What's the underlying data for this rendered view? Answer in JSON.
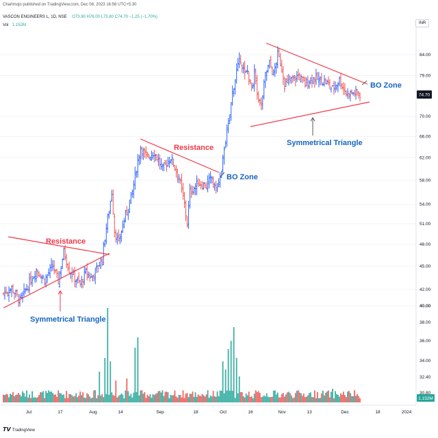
{
  "header": {
    "published": "Chartmojo published on TradingView.com, Dec 08, 2023 16:56 UTC+5:30",
    "symbol": "VASCON ENGINEERS L, 1D, NSE",
    "ohlc": "O73.90  H76.00  L73.80  C74.70  −1.25 (−1.70%)",
    "vol_label": "Vol",
    "vol_value": "1.152M",
    "currency": "INR",
    "last_price": "74.70",
    "vol_tag": "1.152M",
    "logo_text": "TradingView"
  },
  "colors": {
    "up": "#2962ff",
    "down": "#ef5350",
    "vol_up": "#26a69a",
    "vol_down": "#ef5350",
    "line": "#f23645",
    "annotation_red": "#f23645",
    "annotation_blue": "#1565c0",
    "price_tag_bg": "#131722",
    "vol_tag_bg": "#26a69a"
  },
  "chart_data": {
    "type": "ohlc",
    "price_axis": {
      "scale": "log",
      "ticks": [
        84.0,
        79.0,
        74.7,
        70.0,
        66.0,
        62.0,
        58.0,
        54.0,
        51.0,
        48.0,
        45.0,
        42.0,
        40.0,
        38.0,
        36.0,
        34.0,
        32.4,
        30.8
      ]
    },
    "x_ticks": [
      "Jul",
      "17",
      "Aug",
      "14",
      "Sep",
      "18",
      "Oct",
      "16",
      "Nov",
      "13",
      "Dec",
      "18",
      "2024"
    ],
    "close_path": [
      [
        0,
        41.5
      ],
      [
        6,
        42.2
      ],
      [
        12,
        40.6
      ],
      [
        18,
        42.5
      ],
      [
        24,
        44.5
      ],
      [
        30,
        43.2
      ],
      [
        36,
        45.0
      ],
      [
        40,
        43.0
      ],
      [
        44,
        47.0
      ],
      [
        48,
        44.5
      ],
      [
        52,
        43.5
      ],
      [
        56,
        42.6
      ],
      [
        60,
        44.2
      ],
      [
        64,
        43.5
      ],
      [
        68,
        44.6
      ],
      [
        72,
        46.0
      ],
      [
        74,
        49.0
      ],
      [
        77,
        53.0
      ],
      [
        79,
        56.0
      ],
      [
        81,
        50.0
      ],
      [
        84,
        48.0
      ],
      [
        86,
        50.0
      ],
      [
        90,
        53.0
      ],
      [
        94,
        56.0
      ],
      [
        97,
        60.0
      ],
      [
        100,
        64.0
      ],
      [
        104,
        62.0
      ],
      [
        110,
        63.0
      ],
      [
        116,
        60.0
      ],
      [
        122,
        62.0
      ],
      [
        128,
        58.5
      ],
      [
        132,
        54.0
      ],
      [
        134,
        51.0
      ],
      [
        136,
        56.0
      ],
      [
        142,
        57.5
      ],
      [
        148,
        57.0
      ],
      [
        152,
        58.5
      ],
      [
        154,
        56.5
      ],
      [
        157,
        57.5
      ],
      [
        159,
        59.0
      ],
      [
        161,
        64.0
      ],
      [
        164,
        68.0
      ],
      [
        167,
        75.0
      ],
      [
        170,
        80.0
      ],
      [
        173,
        83.0
      ],
      [
        176,
        79.0
      ],
      [
        178,
        80.0
      ],
      [
        180,
        77.0
      ],
      [
        182,
        76.0
      ],
      [
        183,
        80.0
      ],
      [
        185,
        75.0
      ],
      [
        188,
        72.0
      ],
      [
        191,
        79.0
      ],
      [
        194,
        82.0
      ],
      [
        197,
        79.0
      ],
      [
        200,
        84.0
      ],
      [
        203,
        81.0
      ],
      [
        205,
        77.0
      ],
      [
        210,
        78.0
      ],
      [
        215,
        79.0
      ],
      [
        220,
        77.0
      ],
      [
        225,
        78.5
      ],
      [
        230,
        78.0
      ],
      [
        235,
        77.5
      ],
      [
        240,
        76.0
      ],
      [
        245,
        78.0
      ],
      [
        250,
        75.0
      ],
      [
        256,
        75.0
      ],
      [
        260,
        74.7
      ]
    ],
    "volume_millions": {
      "ticks": [
        40.0,
        38.0,
        36.0,
        34.0,
        32.4,
        30.8
      ],
      "labeled_spikes": [
        {
          "period": "Aug 9",
          "value": 40.0
        },
        {
          "period": "Aug 28",
          "value": 36.4
        },
        {
          "period": "Oct 9",
          "value": 37.5
        },
        {
          "period": "last",
          "value": 1.152
        }
      ]
    },
    "annotations": [
      {
        "text": "Resistance",
        "color": "red"
      },
      {
        "text": "Symmetrical Triangle",
        "color": "blue"
      },
      {
        "text": "Resistance",
        "color": "red"
      },
      {
        "text": "BO Zone",
        "color": "blue"
      },
      {
        "text": "BO Zone",
        "color": "blue"
      },
      {
        "text": "Symmetrical Triangle",
        "color": "blue"
      }
    ]
  }
}
